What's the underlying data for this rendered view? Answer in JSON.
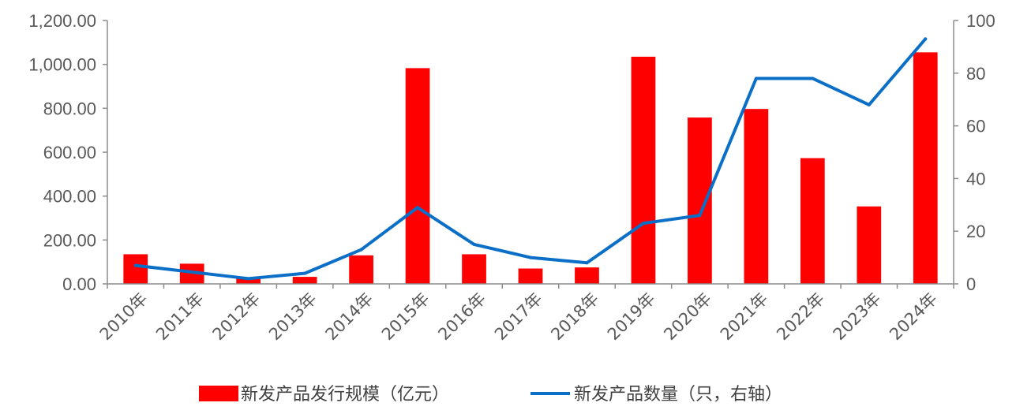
{
  "chart_data": {
    "type": "bar+line",
    "categories": [
      "2010年",
      "2011年",
      "2012年",
      "2013年",
      "2014年",
      "2015年",
      "2016年",
      "2017年",
      "2018年",
      "2019年",
      "2020年",
      "2021年",
      "2022年",
      "2023年",
      "2024年"
    ],
    "series": [
      {
        "name": "新发产品发行规模（亿元）",
        "type": "bar",
        "axis": "left",
        "color": "#ff0000",
        "values": [
          135,
          92,
          28,
          32,
          130,
          983,
          135,
          70,
          75,
          1035,
          758,
          797,
          573,
          353,
          1055
        ]
      },
      {
        "name": "新发产品数量（只，右轴）",
        "type": "line",
        "axis": "right",
        "color": "#0b6fc7",
        "values": [
          7,
          4.5,
          2,
          4,
          13,
          29,
          15,
          10,
          8,
          23,
          26,
          78,
          78,
          68,
          93
        ]
      }
    ],
    "y_left": {
      "ylim": [
        0,
        1200
      ],
      "ticks": [
        "0.00",
        "200.00",
        "400.00",
        "600.00",
        "800.00",
        "1,000.00",
        "1,200.00"
      ]
    },
    "y_right": {
      "ylim": [
        0,
        100
      ],
      "ticks": [
        "0",
        "20",
        "40",
        "60",
        "80",
        "100"
      ]
    },
    "grid": false,
    "legend_position": "bottom"
  }
}
